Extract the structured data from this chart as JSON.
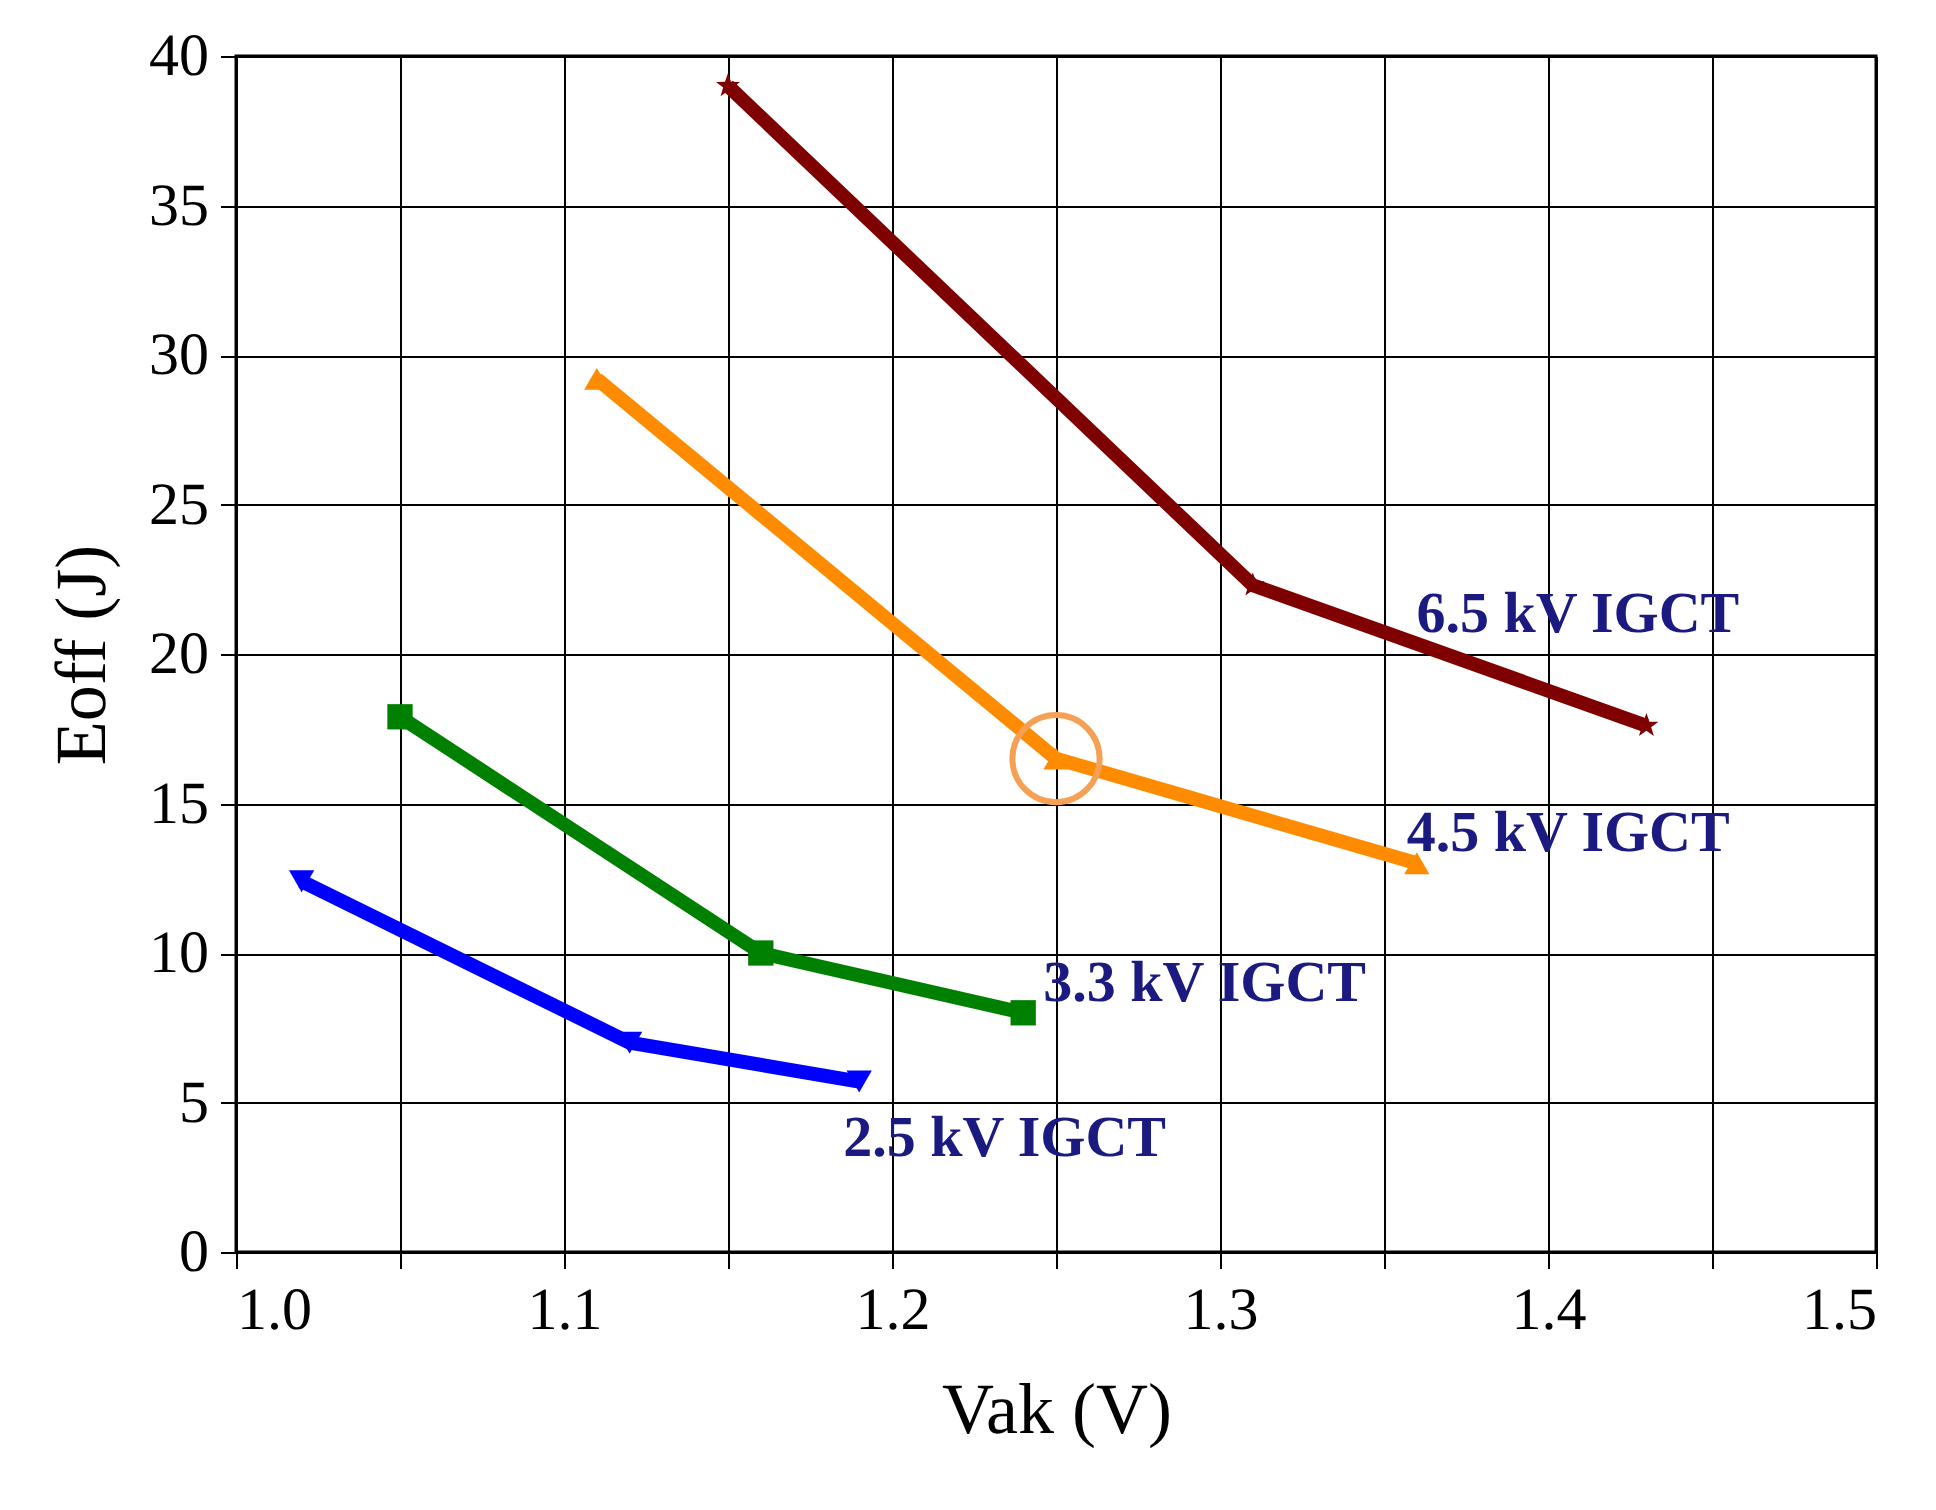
{
  "chart_data": {
    "type": "line",
    "xlabel": "Vak (V)",
    "ylabel": "Eoff (J)",
    "xlim": [
      1.0,
      1.5
    ],
    "ylim": [
      0,
      40
    ],
    "xticks": [
      {
        "value": 1.0,
        "label": "1.0"
      },
      {
        "value": 1.05,
        "label": null
      },
      {
        "value": 1.1,
        "label": "1.1"
      },
      {
        "value": 1.15,
        "label": null
      },
      {
        "value": 1.2,
        "label": "1.2"
      },
      {
        "value": 1.25,
        "label": null
      },
      {
        "value": 1.3,
        "label": "1.3"
      },
      {
        "value": 1.35,
        "label": null
      },
      {
        "value": 1.4,
        "label": "1.4"
      },
      {
        "value": 1.45,
        "label": null
      },
      {
        "value": 1.5,
        "label": "1.5"
      }
    ],
    "yticks": [
      0,
      5,
      10,
      15,
      20,
      25,
      30,
      35,
      40
    ],
    "grid": true,
    "legend": false,
    "line_style": "solid",
    "series": [
      {
        "name": "6.5 kV IGCT",
        "color": "#7f0000",
        "marker": "star",
        "x": [
          1.15,
          1.31,
          1.43
        ],
        "values": [
          39,
          22.3,
          17.6
        ]
      },
      {
        "name": "4.5 kV IGCT",
        "color": "#ff8c00",
        "marker": "triangle",
        "x": [
          1.11,
          1.25,
          1.36
        ],
        "values": [
          29.2,
          16.5,
          13
        ]
      },
      {
        "name": "3.3 kV IGCT",
        "color": "#008000",
        "marker": "square",
        "x": [
          1.05,
          1.16,
          1.24
        ],
        "values": [
          17.9,
          10,
          8
        ]
      },
      {
        "name": "2.5 kV IGCT",
        "color": "#0000ff",
        "marker": "triangle-down",
        "x": [
          1.02,
          1.12,
          1.19
        ],
        "values": [
          12.4,
          7,
          5.7
        ]
      }
    ]
  }
}
